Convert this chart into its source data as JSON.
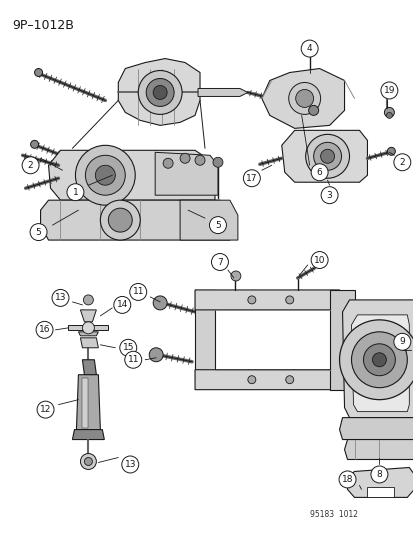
{
  "title": "9P–1012B",
  "background": "#ffffff",
  "footer": "95183  1012",
  "fig_w": 4.14,
  "fig_h": 5.33,
  "dpi": 100
}
